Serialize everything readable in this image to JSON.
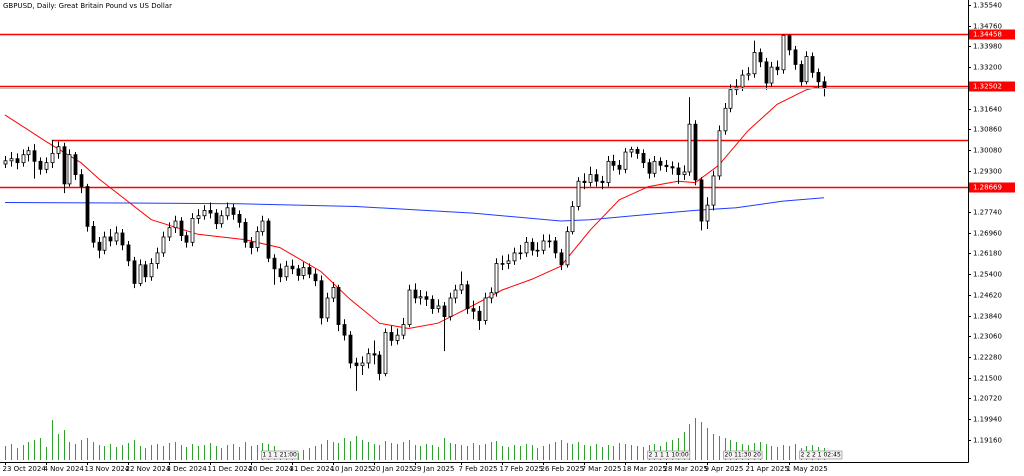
{
  "chart_data": {
    "type": "candlestick",
    "title": "GBPUSD, Daily:  Great Britain Pound vs US Dollar",
    "ylim": [
      1.1832,
      1.3573
    ],
    "yticks": [
      {
        "value": 1.3554,
        "label": "1.35540"
      },
      {
        "value": 1.3476,
        "label": "1.34760"
      },
      {
        "value": 1.3398,
        "label": "1.33980"
      },
      {
        "value": 1.332,
        "label": "1.33200"
      },
      {
        "value": 1.3164,
        "label": "1.31640"
      },
      {
        "value": 1.3086,
        "label": "1.30860"
      },
      {
        "value": 1.3008,
        "label": "1.30080"
      },
      {
        "value": 1.293,
        "label": "1.29300"
      },
      {
        "value": 1.2774,
        "label": "1.27740"
      },
      {
        "value": 1.2696,
        "label": "1.26960"
      },
      {
        "value": 1.2618,
        "label": "1.26180"
      },
      {
        "value": 1.254,
        "label": "1.25400"
      },
      {
        "value": 1.2462,
        "label": "1.24620"
      },
      {
        "value": 1.2384,
        "label": "1.23840"
      },
      {
        "value": 1.2306,
        "label": "1.23060"
      },
      {
        "value": 1.2228,
        "label": "1.22280"
      },
      {
        "value": 1.215,
        "label": "1.21500"
      },
      {
        "value": 1.2072,
        "label": "1.20720"
      },
      {
        "value": 1.1994,
        "label": "1.19940"
      },
      {
        "value": 1.1916,
        "label": "1.19160"
      }
    ],
    "levels": [
      1.34458,
      1.32502,
      1.28669
    ],
    "level_unlabeled": {
      "value": 1.3045,
      "x_start": 8
    },
    "level_color": "#ff0000",
    "up_color": "#ffffff",
    "down_color": "#000000",
    "volume_color": "#2ea02e",
    "categories": [
      "23 Oct 2024",
      null,
      null,
      null,
      null,
      null,
      null,
      "4 Nov 2024",
      null,
      null,
      null,
      null,
      null,
      null,
      "13 Nov 2024",
      null,
      null,
      null,
      null,
      null,
      null,
      "22 Nov 2024",
      null,
      null,
      null,
      null,
      null,
      null,
      "3 Dec 2024",
      null,
      null,
      null,
      null,
      null,
      null,
      "11 Dec 2024",
      null,
      null,
      null,
      null,
      null,
      null,
      "20 Dec 2024",
      null,
      null,
      null,
      null,
      null,
      null,
      "31 Dec 2024",
      null,
      null,
      null,
      null,
      null,
      null,
      "10 Jan 2025",
      null,
      null,
      null,
      null,
      null,
      null,
      "20 Jan 2025",
      null,
      null,
      null,
      null,
      null,
      null,
      "29 Jan 2025",
      null,
      null,
      null,
      null,
      null,
      null,
      null,
      "7 Feb 2025",
      null,
      null,
      null,
      null,
      null,
      null,
      "17 Feb 2025",
      null,
      null,
      null,
      null,
      null,
      null,
      "26 Feb 2025",
      null,
      null,
      null,
      null,
      null,
      null,
      "7 Mar 2025",
      null,
      null,
      null,
      null,
      null,
      null,
      "18 Mar 2025",
      null,
      null,
      null,
      null,
      null,
      null,
      "28 Mar 2025",
      null,
      null,
      null,
      null,
      null,
      null,
      "9 Apr 2025",
      null,
      null,
      null,
      null,
      null,
      null,
      "21 Apr 2025",
      null,
      null,
      null,
      null,
      null,
      null,
      "1 May 2025",
      null,
      null,
      null,
      null,
      null,
      null
    ],
    "ohlc": [
      [
        1.2955,
        1.2985,
        1.294,
        1.2967
      ],
      [
        1.2967,
        1.3,
        1.2945,
        1.2975
      ],
      [
        1.2975,
        1.2995,
        1.2935,
        1.296
      ],
      [
        1.296,
        1.301,
        1.2945,
        1.299
      ],
      [
        1.299,
        1.302,
        1.2965,
        1.3005
      ],
      [
        1.3005,
        1.303,
        1.29,
        1.2965
      ],
      [
        1.2965,
        1.298,
        1.2915,
        1.2935
      ],
      [
        1.2935,
        1.298,
        1.292,
        1.296
      ],
      [
        1.296,
        1.3045,
        1.294,
        1.2995
      ],
      [
        1.2995,
        1.304,
        1.2975,
        1.302
      ],
      [
        1.302,
        1.3035,
        1.2845,
        1.288
      ],
      [
        1.288,
        1.301,
        1.287,
        1.299
      ],
      [
        1.299,
        1.3,
        1.2895,
        1.2915
      ],
      [
        1.2915,
        1.2935,
        1.2845,
        1.287
      ],
      [
        1.287,
        1.288,
        1.27,
        1.272
      ],
      [
        1.272,
        1.274,
        1.264,
        1.266
      ],
      [
        1.266,
        1.268,
        1.26,
        1.263
      ],
      [
        1.263,
        1.27,
        1.2615,
        1.268
      ],
      [
        1.268,
        1.271,
        1.2645,
        1.2665
      ],
      [
        1.2665,
        1.272,
        1.265,
        1.2695
      ],
      [
        1.2695,
        1.271,
        1.263,
        1.265
      ],
      [
        1.265,
        1.2665,
        1.257,
        1.259
      ],
      [
        1.259,
        1.2605,
        1.2487,
        1.2505
      ],
      [
        1.2505,
        1.2595,
        1.2495,
        1.2575
      ],
      [
        1.2575,
        1.259,
        1.251,
        1.253
      ],
      [
        1.253,
        1.26,
        1.2515,
        1.258
      ],
      [
        1.258,
        1.264,
        1.256,
        1.262
      ],
      [
        1.262,
        1.27,
        1.2605,
        1.268
      ],
      [
        1.268,
        1.2735,
        1.2665,
        1.2715
      ],
      [
        1.2715,
        1.276,
        1.2695,
        1.274
      ],
      [
        1.274,
        1.2755,
        1.2665,
        1.2685
      ],
      [
        1.2685,
        1.27,
        1.264,
        1.266
      ],
      [
        1.266,
        1.277,
        1.2645,
        1.275
      ],
      [
        1.275,
        1.2785,
        1.273,
        1.276
      ],
      [
        1.276,
        1.28,
        1.2745,
        1.278
      ],
      [
        1.278,
        1.281,
        1.275,
        1.277
      ],
      [
        1.277,
        1.2785,
        1.271,
        1.273
      ],
      [
        1.273,
        1.278,
        1.2715,
        1.276
      ],
      [
        1.276,
        1.281,
        1.2745,
        1.279
      ],
      [
        1.279,
        1.2805,
        1.2745,
        1.2765
      ],
      [
        1.2765,
        1.278,
        1.2715,
        1.2735
      ],
      [
        1.2735,
        1.275,
        1.264,
        1.266
      ],
      [
        1.266,
        1.268,
        1.2615,
        1.264
      ],
      [
        1.264,
        1.272,
        1.2625,
        1.27
      ],
      [
        1.27,
        1.276,
        1.2685,
        1.274
      ],
      [
        1.274,
        1.275,
        1.2585,
        1.26
      ],
      [
        1.26,
        1.2615,
        1.25,
        1.256
      ],
      [
        1.256,
        1.258,
        1.251,
        1.253
      ],
      [
        1.253,
        1.259,
        1.2515,
        1.257
      ],
      [
        1.257,
        1.2595,
        1.254,
        1.256
      ],
      [
        1.256,
        1.2575,
        1.2515,
        1.2535
      ],
      [
        1.2535,
        1.2585,
        1.252,
        1.2565
      ],
      [
        1.2565,
        1.258,
        1.2525,
        1.254
      ],
      [
        1.254,
        1.256,
        1.2495,
        1.2515
      ],
      [
        1.2515,
        1.2535,
        1.235,
        1.2375
      ],
      [
        1.2375,
        1.247,
        1.236,
        1.245
      ],
      [
        1.245,
        1.251,
        1.2435,
        1.249
      ],
      [
        1.249,
        1.25,
        1.2325,
        1.235
      ],
      [
        1.235,
        1.237,
        1.229,
        1.231
      ],
      [
        1.231,
        1.2325,
        1.2185,
        1.2205
      ],
      [
        1.2205,
        1.2225,
        1.21,
        1.2195
      ],
      [
        1.2195,
        1.223,
        1.216,
        1.2205
      ],
      [
        1.2205,
        1.226,
        1.2185,
        1.224
      ],
      [
        1.224,
        1.229,
        1.22,
        1.2235
      ],
      [
        1.2235,
        1.225,
        1.214,
        1.2165
      ],
      [
        1.2165,
        1.2335,
        1.2155,
        1.232
      ],
      [
        1.232,
        1.2345,
        1.227,
        1.229
      ],
      [
        1.229,
        1.2335,
        1.2275,
        1.231
      ],
      [
        1.231,
        1.2375,
        1.2295,
        1.235
      ],
      [
        1.235,
        1.25,
        1.234,
        1.248
      ],
      [
        1.248,
        1.2505,
        1.243,
        1.245
      ],
      [
        1.245,
        1.248,
        1.2425,
        1.2455
      ],
      [
        1.2455,
        1.2475,
        1.242,
        1.2445
      ],
      [
        1.2445,
        1.246,
        1.239,
        1.241
      ],
      [
        1.241,
        1.2445,
        1.2395,
        1.242
      ],
      [
        1.242,
        1.2435,
        1.225,
        1.238
      ],
      [
        1.238,
        1.247,
        1.2365,
        1.245
      ],
      [
        1.245,
        1.25,
        1.243,
        1.248
      ],
      [
        1.248,
        1.255,
        1.2465,
        1.25
      ],
      [
        1.25,
        1.2515,
        1.239,
        1.241
      ],
      [
        1.241,
        1.244,
        1.237,
        1.24
      ],
      [
        1.24,
        1.242,
        1.233,
        1.2365
      ],
      [
        1.2365,
        1.247,
        1.235,
        1.245
      ],
      [
        1.245,
        1.249,
        1.243,
        1.247
      ],
      [
        1.247,
        1.26,
        1.2455,
        1.258
      ],
      [
        1.258,
        1.261,
        1.2555,
        1.258
      ],
      [
        1.258,
        1.2615,
        1.256,
        1.259
      ],
      [
        1.259,
        1.264,
        1.2575,
        1.262
      ],
      [
        1.262,
        1.265,
        1.2595,
        1.262
      ],
      [
        1.262,
        1.268,
        1.2605,
        1.266
      ],
      [
        1.266,
        1.2675,
        1.261,
        1.263
      ],
      [
        1.263,
        1.266,
        1.2605,
        1.263
      ],
      [
        1.263,
        1.269,
        1.2615,
        1.2665
      ],
      [
        1.2665,
        1.269,
        1.264,
        1.2665
      ],
      [
        1.2665,
        1.268,
        1.26,
        1.262
      ],
      [
        1.262,
        1.2635,
        1.2555,
        1.2575
      ],
      [
        1.2575,
        1.272,
        1.2565,
        1.27
      ],
      [
        1.27,
        1.2815,
        1.269,
        1.2795
      ],
      [
        1.2795,
        1.2905,
        1.278,
        1.289
      ],
      [
        1.289,
        1.292,
        1.286,
        1.2885
      ],
      [
        1.2885,
        1.2945,
        1.287,
        1.2915
      ],
      [
        1.2915,
        1.2935,
        1.287,
        1.289
      ],
      [
        1.289,
        1.291,
        1.286,
        1.2885
      ],
      [
        1.2885,
        1.2985,
        1.287,
        1.2965
      ],
      [
        1.2965,
        1.299,
        1.293,
        1.295
      ],
      [
        1.295,
        1.297,
        1.2915,
        1.2935
      ],
      [
        1.2935,
        1.3015,
        1.292,
        1.3
      ],
      [
        1.3,
        1.302,
        1.298,
        1.301
      ],
      [
        1.301,
        1.302,
        1.2975,
        1.2995
      ],
      [
        1.2995,
        1.301,
        1.294,
        1.296
      ],
      [
        1.296,
        1.2975,
        1.29,
        1.292
      ],
      [
        1.292,
        1.2985,
        1.2905,
        1.2965
      ],
      [
        1.2965,
        1.298,
        1.293,
        1.295
      ],
      [
        1.295,
        1.297,
        1.2925,
        1.2945
      ],
      [
        1.2945,
        1.2965,
        1.2915,
        1.294
      ],
      [
        1.294,
        1.296,
        1.288,
        1.2915
      ],
      [
        1.2915,
        1.295,
        1.2895,
        1.2925
      ],
      [
        1.2925,
        1.3207,
        1.291,
        1.3105
      ],
      [
        1.3105,
        1.312,
        1.2875,
        1.2895
      ],
      [
        1.2895,
        1.2905,
        1.2705,
        1.274
      ],
      [
        1.274,
        1.283,
        1.271,
        1.28
      ],
      [
        1.28,
        1.293,
        1.278,
        1.291
      ],
      [
        1.291,
        1.31,
        1.2895,
        1.308
      ],
      [
        1.308,
        1.3185,
        1.3065,
        1.3165
      ],
      [
        1.3165,
        1.3255,
        1.315,
        1.3235
      ],
      [
        1.3235,
        1.3275,
        1.3215,
        1.3245
      ],
      [
        1.3245,
        1.331,
        1.323,
        1.329
      ],
      [
        1.329,
        1.332,
        1.327,
        1.3295
      ],
      [
        1.3295,
        1.342,
        1.328,
        1.3375
      ],
      [
        1.3375,
        1.339,
        1.332,
        1.334
      ],
      [
        1.334,
        1.3355,
        1.3235,
        1.326
      ],
      [
        1.326,
        1.334,
        1.3245,
        1.332
      ],
      [
        1.332,
        1.3345,
        1.329,
        1.331
      ],
      [
        1.331,
        1.3445,
        1.3295,
        1.344
      ],
      [
        1.344,
        1.3445,
        1.3365,
        1.3385
      ],
      [
        1.3385,
        1.34,
        1.331,
        1.333
      ],
      [
        1.333,
        1.3345,
        1.325,
        1.3265
      ],
      [
        1.3265,
        1.338,
        1.3255,
        1.336
      ],
      [
        1.336,
        1.3375,
        1.328,
        1.33
      ],
      [
        1.33,
        1.3315,
        1.324,
        1.3265
      ],
      [
        1.3265,
        1.3285,
        1.321,
        1.324
      ]
    ],
    "volume": [
      14,
      16,
      12,
      15,
      18,
      20,
      22,
      13,
      40,
      26,
      30,
      18,
      16,
      20,
      22,
      18,
      15,
      14,
      16,
      13,
      15,
      17,
      20,
      14,
      12,
      15,
      16,
      14,
      17,
      18,
      15,
      13,
      16,
      14,
      15,
      17,
      14,
      12,
      15,
      16,
      13,
      18,
      14,
      15,
      17,
      16,
      14,
      8,
      9,
      6,
      7,
      10,
      12,
      14,
      16,
      20,
      18,
      17,
      22,
      19,
      24,
      20,
      18,
      16,
      15,
      19,
      17,
      16,
      18,
      20,
      15,
      14,
      16,
      15,
      13,
      22,
      17,
      16,
      15,
      14,
      17,
      15,
      16,
      18,
      19,
      14,
      13,
      15,
      14,
      16,
      15,
      12,
      14,
      16,
      18,
      20,
      17,
      16,
      18,
      15,
      14,
      16,
      13,
      15,
      14,
      17,
      16,
      15,
      14,
      13,
      15,
      16,
      14,
      18,
      20,
      22,
      28,
      36,
      42,
      38,
      32,
      26,
      24,
      22,
      20,
      18,
      16,
      15,
      17,
      18,
      16,
      14,
      13,
      15,
      14,
      16,
      12,
      14,
      15,
      13,
      12
    ],
    "ma_fast": {
      "color": "#ff0000",
      "x": [
        0,
        7,
        13,
        16,
        25,
        33,
        41,
        47,
        54,
        59,
        64,
        69,
        74,
        79,
        85,
        90,
        95,
        100,
        105,
        110,
        115,
        118,
        122,
        127,
        132,
        137,
        140
      ],
      "values": [
        1.314,
        1.304,
        1.296,
        1.29,
        1.2745,
        1.269,
        1.267,
        1.264,
        1.255,
        1.2445,
        1.2355,
        1.2335,
        1.2355,
        1.241,
        1.248,
        1.252,
        1.257,
        1.2705,
        1.282,
        1.287,
        1.289,
        1.2885,
        1.295,
        1.308,
        1.318,
        1.3235,
        1.325
      ]
    },
    "ma_slow": {
      "color": "#1f3cff",
      "x": [
        0,
        20,
        40,
        60,
        80,
        95,
        100,
        110,
        118,
        125,
        133,
        140
      ],
      "values": [
        1.281,
        1.2808,
        1.2805,
        1.2795,
        1.277,
        1.274,
        1.2745,
        1.2765,
        1.278,
        1.279,
        1.2815,
        1.2828
      ]
    },
    "events": [
      {
        "x": 44,
        "label": "1 1 1 21:00"
      },
      {
        "x": 110,
        "label": "2 1 1 1 10:00"
      },
      {
        "x": 123,
        "label": "20 11:30 20"
      },
      {
        "x": 136,
        "label": "2 2 2 1 02:45"
      }
    ]
  }
}
